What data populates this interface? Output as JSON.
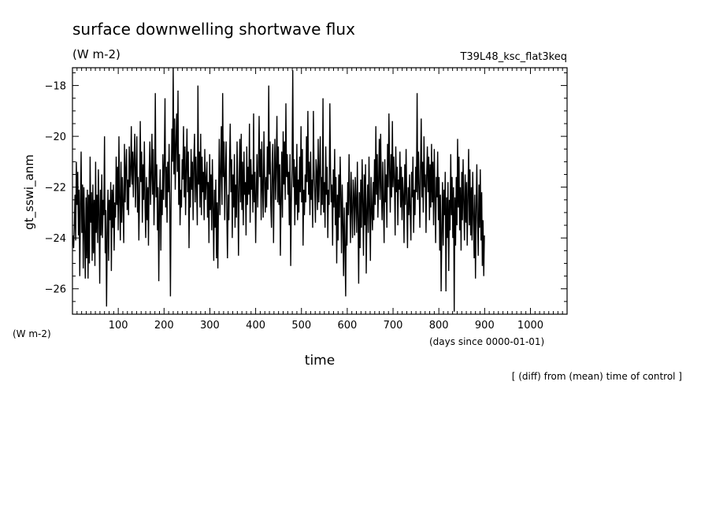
{
  "chart_data": {
    "type": "line",
    "title": "surface downwelling shortwave flux",
    "units_label": "(W m-2)",
    "run_label": "T39L48_ksc_flat3keq",
    "ylabel": "gt_sswi_anm",
    "ylabel_units": "(W m-2)",
    "xlabel": "time",
    "xlabel_units": "(days since 0000-01-01)",
    "footnote": "[ (diff) from (mean) time of control ]",
    "xlim": [
      0,
      1080
    ],
    "ylim": [
      -27,
      -17.3
    ],
    "x_ticks": [
      100,
      200,
      300,
      400,
      500,
      600,
      700,
      800,
      900,
      1000
    ],
    "y_ticks": [
      -18,
      -20,
      -22,
      -24,
      -26
    ],
    "grid": false,
    "line_color": "#000000",
    "series": [
      {
        "x_step": 1.5,
        "x_start": 1,
        "values": [
          -23.9,
          -24.4,
          -23.6,
          -22.3,
          -24.1,
          -21.0,
          -22.7,
          -21.4,
          -23.9,
          -22.1,
          -25.5,
          -22.6,
          -20.6,
          -23.8,
          -21.9,
          -25.2,
          -22.0,
          -23.7,
          -25.6,
          -22.4,
          -24.8,
          -22.1,
          -25.6,
          -22.3,
          -25.0,
          -20.8,
          -23.4,
          -22.2,
          -24.9,
          -21.9,
          -24.6,
          -22.5,
          -25.1,
          -21.0,
          -23.8,
          -22.3,
          -24.2,
          -21.3,
          -22.9,
          -25.8,
          -22.1,
          -23.9,
          -21.5,
          -24.0,
          -22.5,
          -23.1,
          -20.0,
          -24.6,
          -22.9,
          -26.7,
          -23.8,
          -22.1,
          -24.9,
          -22.5,
          -23.3,
          -21.8,
          -25.3,
          -22.1,
          -23.6,
          -21.9,
          -24.5,
          -22.6,
          -23.2,
          -20.8,
          -22.7,
          -21.2,
          -23.7,
          -20.0,
          -22.6,
          -24.1,
          -21.0,
          -23.4,
          -21.6,
          -22.8,
          -24.2,
          -20.3,
          -22.6,
          -21.3,
          -20.5,
          -22.9,
          -21.7,
          -23.1,
          -20.4,
          -22.0,
          -21.5,
          -19.6,
          -21.9,
          -20.6,
          -22.4,
          -20.9,
          -19.9,
          -22.8,
          -21.4,
          -20.0,
          -23.0,
          -21.6,
          -24.1,
          -22.3,
          -19.4,
          -21.8,
          -20.6,
          -23.4,
          -21.1,
          -22.5,
          -20.2,
          -22.8,
          -24.0,
          -21.6,
          -23.3,
          -22.0,
          -24.3,
          -21.4,
          -20.2,
          -22.7,
          -21.6,
          -19.9,
          -22.3,
          -20.5,
          -23.5,
          -21.9,
          -18.3,
          -22.4,
          -21.1,
          -23.7,
          -22.0,
          -25.7,
          -22.6,
          -21.3,
          -24.5,
          -22.1,
          -23.1,
          -20.7,
          -22.5,
          -21.0,
          -18.5,
          -22.8,
          -21.2,
          -23.4,
          -21.0,
          -22.2,
          -20.3,
          -22.9,
          -26.3,
          -22.3,
          -19.7,
          -21.0,
          -17.3,
          -21.5,
          -19.3,
          -22.1,
          -20.3,
          -19.1,
          -21.4,
          -18.2,
          -22.7,
          -20.7,
          -23.5,
          -22.1,
          -22.8,
          -20.9,
          -21.7,
          -19.6,
          -22.4,
          -20.4,
          -23.1,
          -21.3,
          -19.7,
          -22.2,
          -20.6,
          -24.4,
          -21.6,
          -22.8,
          -20.5,
          -22.1,
          -21.0,
          -23.3,
          -20.9,
          -19.9,
          -22.6,
          -20.8,
          -22.0,
          -23.5,
          -18.0,
          -21.9,
          -20.6,
          -22.8,
          -19.9,
          -23.1,
          -20.8,
          -22.2,
          -21.4,
          -23.3,
          -20.5,
          -22.5,
          -21.7,
          -21.0,
          -23.2,
          -21.8,
          -24.2,
          -20.7,
          -22.9,
          -21.5,
          -23.7,
          -20.9,
          -22.6,
          -24.9,
          -22.1,
          -23.6,
          -21.7,
          -24.8,
          -22.6,
          -25.2,
          -22.3,
          -20.1,
          -23.1,
          -21.5,
          -19.6,
          -22.7,
          -18.3,
          -21.6,
          -20.2,
          -23.3,
          -21.5,
          -20.2,
          -23.1,
          -24.8,
          -22.3,
          -23.3,
          -21.1,
          -19.5,
          -22.2,
          -20.9,
          -24.0,
          -21.5,
          -22.8,
          -20.7,
          -23.6,
          -21.9,
          -23.2,
          -20.2,
          -22.0,
          -24.7,
          -21.6,
          -20.1,
          -22.6,
          -19.9,
          -22.9,
          -21.0,
          -23.5,
          -20.6,
          -22.3,
          -21.8,
          -23.9,
          -20.4,
          -22.7,
          -21.2,
          -22.3,
          -19.5,
          -23.4,
          -20.9,
          -22.1,
          -21.5,
          -23.0,
          -19.1,
          -22.6,
          -21.4,
          -24.2,
          -22.1,
          -20.7,
          -22.8,
          -21.3,
          -19.2,
          -21.6,
          -20.5,
          -23.3,
          -20.2,
          -22.0,
          -23.2,
          -19.8,
          -21.5,
          -23.0,
          -21.6,
          -22.8,
          -20.4,
          -22.1,
          -18.0,
          -21.5,
          -20.2,
          -22.7,
          -23.6,
          -21.1,
          -20.3,
          -24.2,
          -21.8,
          -20.1,
          -22.5,
          -21.1,
          -19.2,
          -22.6,
          -20.4,
          -22.7,
          -21.1,
          -24.7,
          -22.4,
          -20.6,
          -23.2,
          -19.8,
          -21.9,
          -20.2,
          -22.5,
          -18.7,
          -21.6,
          -20.7,
          -22.3,
          -21.4,
          -23.5,
          -20.7,
          -25.1,
          -22.6,
          -21.3,
          -17.4,
          -22.0,
          -20.9,
          -23.5,
          -21.2,
          -22.7,
          -20.3,
          -23.3,
          -21.7,
          -23.0,
          -20.8,
          -22.2,
          -19.6,
          -22.6,
          -20.5,
          -24.3,
          -22.1,
          -23.1,
          -21.5,
          -22.6,
          -20.0,
          -21.8,
          -19.0,
          -22.3,
          -21.0,
          -23.1,
          -20.6,
          -22.5,
          -21.7,
          -23.6,
          -19.0,
          -21.3,
          -22.2,
          -23.4,
          -20.9,
          -21.4,
          -22.9,
          -20.1,
          -22.6,
          -21.3,
          -20.0,
          -23.1,
          -21.6,
          -22.7,
          -18.5,
          -23.0,
          -21.8,
          -23.6,
          -20.4,
          -22.3,
          -21.2,
          -24.0,
          -22.1,
          -22.7,
          -18.7,
          -21.4,
          -22.6,
          -21.9,
          -24.3,
          -21.3,
          -22.8,
          -20.5,
          -23.5,
          -21.6,
          -25.0,
          -22.3,
          -24.1,
          -21.5,
          -23.2,
          -20.8,
          -22.2,
          -24.6,
          -21.9,
          -23.5,
          -25.5,
          -22.8,
          -24.4,
          -26.3,
          -22.6,
          -24.3,
          -21.8,
          -23.1,
          -20.7,
          -22.5,
          -24.2,
          -21.4,
          -22.9,
          -24.0,
          -21.7,
          -22.3,
          -23.9,
          -21.6,
          -22.5,
          -23.8,
          -21.0,
          -23.3,
          -25.8,
          -22.2,
          -24.4,
          -21.7,
          -23.6,
          -20.9,
          -22.7,
          -24.7,
          -21.5,
          -23.5,
          -21.1,
          -25.4,
          -22.9,
          -21.9,
          -23.8,
          -20.8,
          -22.9,
          -24.9,
          -21.6,
          -22.9,
          -23.7,
          -21.8,
          -23.3,
          -20.9,
          -22.7,
          -19.6,
          -22.3,
          -20.7,
          -23.2,
          -21.8,
          -20.1,
          -22.5,
          -19.9,
          -22.0,
          -23.3,
          -21.0,
          -22.6,
          -24.2,
          -20.9,
          -22.6,
          -21.5,
          -23.6,
          -20.3,
          -22.0,
          -19.1,
          -21.4,
          -23.0,
          -20.7,
          -22.4,
          -19.4,
          -22.0,
          -20.8,
          -21.7,
          -23.9,
          -20.4,
          -22.2,
          -21.2,
          -23.5,
          -21.7,
          -22.1,
          -20.6,
          -22.8,
          -21.2,
          -23.3,
          -21.6,
          -22.3,
          -24.2,
          -21.1,
          -22.7,
          -20.5,
          -22.6,
          -24.4,
          -22.0,
          -23.1,
          -21.5,
          -22.9,
          -24.1,
          -21.4,
          -22.4,
          -20.8,
          -23.8,
          -22.1,
          -23.1,
          -21.2,
          -22.2,
          -18.3,
          -22.5,
          -20.6,
          -22.0,
          -23.6,
          -21.3,
          -19.3,
          -22.4,
          -21.0,
          -23.0,
          -20.0,
          -22.0,
          -21.5,
          -23.8,
          -21.4,
          -20.4,
          -22.2,
          -20.8,
          -23.3,
          -21.1,
          -22.8,
          -20.3,
          -22.6,
          -21.0,
          -23.5,
          -20.5,
          -22.3,
          -24.2,
          -21.6,
          -22.4,
          -20.6,
          -23.3,
          -21.6,
          -24.5,
          -22.3,
          -26.1,
          -23.7,
          -21.8,
          -24.3,
          -22.1,
          -23.1,
          -21.4,
          -26.1,
          -22.4,
          -24.0,
          -21.8,
          -25.3,
          -22.5,
          -23.7,
          -20.7,
          -23.1,
          -21.6,
          -24.0,
          -22.0,
          -26.9,
          -22.4,
          -24.3,
          -21.6,
          -23.5,
          -20.1,
          -22.8,
          -20.8,
          -23.7,
          -22.0,
          -24.5,
          -21.4,
          -23.3,
          -20.9,
          -22.7,
          -24.1,
          -21.5,
          -23.4,
          -21.8,
          -24.3,
          -22.4,
          -20.5,
          -23.5,
          -21.3,
          -23.9,
          -22.0,
          -24.1,
          -21.4,
          -23.1,
          -24.8,
          -22.3,
          -25.6,
          -22.8,
          -21.1,
          -23.3,
          -24.7,
          -21.9,
          -23.6,
          -21.3,
          -24.1,
          -22.2,
          -25.1,
          -23.3,
          -25.5,
          -23.9
        ]
      }
    ]
  }
}
